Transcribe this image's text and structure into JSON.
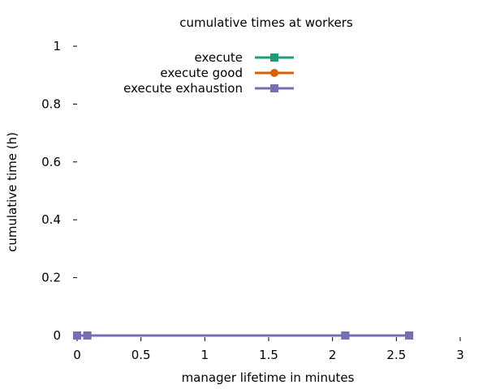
{
  "chart_data": {
    "type": "line",
    "title": "cumulative times at workers",
    "xlabel": "manager lifetime in minutes",
    "ylabel": "cumulative time (h)",
    "xlim": [
      0,
      3
    ],
    "ylim": [
      0,
      1
    ],
    "xticks": [
      0,
      0.5,
      1,
      1.5,
      2,
      2.5,
      3
    ],
    "xtick_labels": [
      "0",
      "0.5",
      "1",
      "1.5",
      "2",
      "2.5",
      "3"
    ],
    "yticks": [
      0,
      0.2,
      0.4,
      0.6,
      0.8,
      1
    ],
    "ytick_labels": [
      "0",
      "0.2",
      "0.4",
      "0.6",
      "0.8",
      "1"
    ],
    "grid": false,
    "legend_position": "top-center",
    "series": [
      {
        "name": "execute",
        "color": "#1b9e77",
        "marker": "square",
        "x": [
          0,
          0.08,
          2.1,
          2.6
        ],
        "y": [
          0,
          0,
          0,
          0
        ]
      },
      {
        "name": "execute good",
        "color": "#d95f02",
        "marker": "circle",
        "x": [
          0,
          0.08,
          2.1,
          2.6
        ],
        "y": [
          0,
          0,
          0,
          0
        ]
      },
      {
        "name": "execute exhaustion",
        "color": "#7570b3",
        "marker": "square",
        "x": [
          0,
          0.08,
          2.1,
          2.6
        ],
        "y": [
          0,
          0,
          0,
          0
        ]
      }
    ]
  }
}
